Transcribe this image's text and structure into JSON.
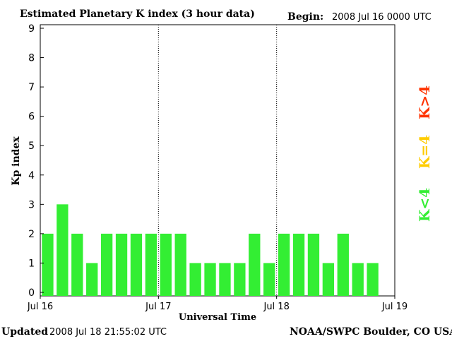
{
  "header": {
    "title": "Estimated Planetary K index (3 hour data)",
    "begin_label": "Begin:",
    "begin_value": "2008 Jul 16 0000 UTC"
  },
  "footer": {
    "updated_label": "Updated",
    "updated_value": "2008 Jul 18 21:55:02 UTC",
    "source": "NOAA/SWPC Boulder, CO USA"
  },
  "legend": [
    {
      "label": "K>4",
      "color": "#ff3300"
    },
    {
      "label": "K=4",
      "color": "#ffcc00"
    },
    {
      "label": "K<4",
      "color": "#33ee33"
    }
  ],
  "chart_data": {
    "type": "bar",
    "title": "Estimated Planetary K index (3 hour data)",
    "xlabel": "Universal Time",
    "ylabel": "Kp index",
    "ylim": [
      0,
      9
    ],
    "yticks": [
      "0",
      "1",
      "2",
      "3",
      "4",
      "5",
      "6",
      "7",
      "8",
      "9"
    ],
    "xticks": [
      "Jul 16",
      "Jul 17",
      "Jul 18",
      "Jul 19"
    ],
    "bin_hours": 3,
    "day_separators": "dotted",
    "values": [
      2,
      3,
      2,
      1,
      2,
      2,
      2,
      2,
      2,
      2,
      1,
      1,
      1,
      1,
      2,
      1,
      2,
      2,
      2,
      1,
      2,
      1,
      1
    ],
    "bar_color": "#33ee33"
  }
}
